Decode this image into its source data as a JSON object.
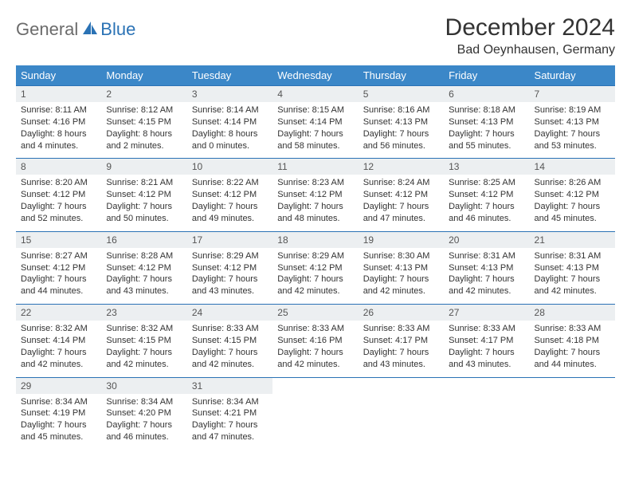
{
  "logo": {
    "text1": "General",
    "text2": "Blue"
  },
  "title": "December 2024",
  "location": "Bad Oeynhausen, Germany",
  "colors": {
    "header_bg": "#3b87c8",
    "header_text": "#ffffff",
    "daynum_bg": "#eceff1",
    "daynum_border": "#2a72b5",
    "logo_gray": "#6b6b6b",
    "logo_blue": "#2a72b5"
  },
  "day_names": [
    "Sunday",
    "Monday",
    "Tuesday",
    "Wednesday",
    "Thursday",
    "Friday",
    "Saturday"
  ],
  "weeks": [
    {
      "nums": [
        "1",
        "2",
        "3",
        "4",
        "5",
        "6",
        "7"
      ],
      "cells": [
        [
          "Sunrise: 8:11 AM",
          "Sunset: 4:16 PM",
          "Daylight: 8 hours and 4 minutes."
        ],
        [
          "Sunrise: 8:12 AM",
          "Sunset: 4:15 PM",
          "Daylight: 8 hours and 2 minutes."
        ],
        [
          "Sunrise: 8:14 AM",
          "Sunset: 4:14 PM",
          "Daylight: 8 hours and 0 minutes."
        ],
        [
          "Sunrise: 8:15 AM",
          "Sunset: 4:14 PM",
          "Daylight: 7 hours and 58 minutes."
        ],
        [
          "Sunrise: 8:16 AM",
          "Sunset: 4:13 PM",
          "Daylight: 7 hours and 56 minutes."
        ],
        [
          "Sunrise: 8:18 AM",
          "Sunset: 4:13 PM",
          "Daylight: 7 hours and 55 minutes."
        ],
        [
          "Sunrise: 8:19 AM",
          "Sunset: 4:13 PM",
          "Daylight: 7 hours and 53 minutes."
        ]
      ]
    },
    {
      "nums": [
        "8",
        "9",
        "10",
        "11",
        "12",
        "13",
        "14"
      ],
      "cells": [
        [
          "Sunrise: 8:20 AM",
          "Sunset: 4:12 PM",
          "Daylight: 7 hours and 52 minutes."
        ],
        [
          "Sunrise: 8:21 AM",
          "Sunset: 4:12 PM",
          "Daylight: 7 hours and 50 minutes."
        ],
        [
          "Sunrise: 8:22 AM",
          "Sunset: 4:12 PM",
          "Daylight: 7 hours and 49 minutes."
        ],
        [
          "Sunrise: 8:23 AM",
          "Sunset: 4:12 PM",
          "Daylight: 7 hours and 48 minutes."
        ],
        [
          "Sunrise: 8:24 AM",
          "Sunset: 4:12 PM",
          "Daylight: 7 hours and 47 minutes."
        ],
        [
          "Sunrise: 8:25 AM",
          "Sunset: 4:12 PM",
          "Daylight: 7 hours and 46 minutes."
        ],
        [
          "Sunrise: 8:26 AM",
          "Sunset: 4:12 PM",
          "Daylight: 7 hours and 45 minutes."
        ]
      ]
    },
    {
      "nums": [
        "15",
        "16",
        "17",
        "18",
        "19",
        "20",
        "21"
      ],
      "cells": [
        [
          "Sunrise: 8:27 AM",
          "Sunset: 4:12 PM",
          "Daylight: 7 hours and 44 minutes."
        ],
        [
          "Sunrise: 8:28 AM",
          "Sunset: 4:12 PM",
          "Daylight: 7 hours and 43 minutes."
        ],
        [
          "Sunrise: 8:29 AM",
          "Sunset: 4:12 PM",
          "Daylight: 7 hours and 43 minutes."
        ],
        [
          "Sunrise: 8:29 AM",
          "Sunset: 4:12 PM",
          "Daylight: 7 hours and 42 minutes."
        ],
        [
          "Sunrise: 8:30 AM",
          "Sunset: 4:13 PM",
          "Daylight: 7 hours and 42 minutes."
        ],
        [
          "Sunrise: 8:31 AM",
          "Sunset: 4:13 PM",
          "Daylight: 7 hours and 42 minutes."
        ],
        [
          "Sunrise: 8:31 AM",
          "Sunset: 4:13 PM",
          "Daylight: 7 hours and 42 minutes."
        ]
      ]
    },
    {
      "nums": [
        "22",
        "23",
        "24",
        "25",
        "26",
        "27",
        "28"
      ],
      "cells": [
        [
          "Sunrise: 8:32 AM",
          "Sunset: 4:14 PM",
          "Daylight: 7 hours and 42 minutes."
        ],
        [
          "Sunrise: 8:32 AM",
          "Sunset: 4:15 PM",
          "Daylight: 7 hours and 42 minutes."
        ],
        [
          "Sunrise: 8:33 AM",
          "Sunset: 4:15 PM",
          "Daylight: 7 hours and 42 minutes."
        ],
        [
          "Sunrise: 8:33 AM",
          "Sunset: 4:16 PM",
          "Daylight: 7 hours and 42 minutes."
        ],
        [
          "Sunrise: 8:33 AM",
          "Sunset: 4:17 PM",
          "Daylight: 7 hours and 43 minutes."
        ],
        [
          "Sunrise: 8:33 AM",
          "Sunset: 4:17 PM",
          "Daylight: 7 hours and 43 minutes."
        ],
        [
          "Sunrise: 8:33 AM",
          "Sunset: 4:18 PM",
          "Daylight: 7 hours and 44 minutes."
        ]
      ]
    },
    {
      "nums": [
        "29",
        "30",
        "31",
        "",
        "",
        "",
        ""
      ],
      "cells": [
        [
          "Sunrise: 8:34 AM",
          "Sunset: 4:19 PM",
          "Daylight: 7 hours and 45 minutes."
        ],
        [
          "Sunrise: 8:34 AM",
          "Sunset: 4:20 PM",
          "Daylight: 7 hours and 46 minutes."
        ],
        [
          "Sunrise: 8:34 AM",
          "Sunset: 4:21 PM",
          "Daylight: 7 hours and 47 minutes."
        ],
        [],
        [],
        [],
        []
      ]
    }
  ]
}
